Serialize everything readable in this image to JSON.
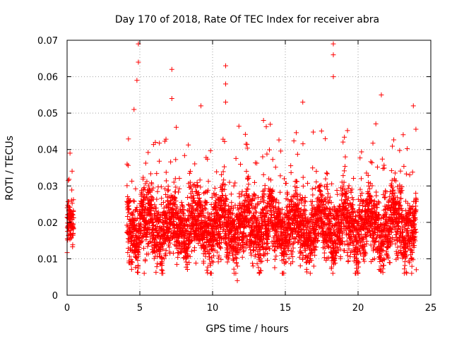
{
  "chart_data": {
    "type": "scatter",
    "title": "Day 170 of 2018, Rate Of TEC Index for receiver abra",
    "xlabel": "GPS time / hours",
    "ylabel": "ROTI / TECUs",
    "xlim": [
      0,
      25
    ],
    "ylim": [
      0,
      0.07
    ],
    "xticks": [
      0,
      5,
      10,
      15,
      20,
      25
    ],
    "xtick_labels": [
      "0",
      "5",
      "10",
      "15",
      "20",
      "25"
    ],
    "yticks": [
      0,
      0.01,
      0.02,
      0.03,
      0.04,
      0.05,
      0.06,
      0.07
    ],
    "ytick_labels": [
      "0",
      "0.01",
      "0.02",
      "0.03",
      "0.04",
      "0.05",
      "0.06",
      "0.07"
    ],
    "grid": true,
    "marker": "+",
    "color": "#ff0000",
    "data_gap_hours": [
      0.5,
      4.1
    ],
    "segments": [
      {
        "t_start": 0.0,
        "t_end": 0.45,
        "base": 0.018,
        "spread": 0.007,
        "max": 0.039
      },
      {
        "t_start": 4.1,
        "t_end": 24.0,
        "base": 0.019,
        "spread": 0.009,
        "max": 0.069
      }
    ],
    "notable_points": [
      {
        "x": 0.2,
        "y": 0.039
      },
      {
        "x": 4.9,
        "y": 0.069
      },
      {
        "x": 4.9,
        "y": 0.064
      },
      {
        "x": 4.8,
        "y": 0.059
      },
      {
        "x": 4.6,
        "y": 0.051
      },
      {
        "x": 5.3,
        "y": 0.006
      },
      {
        "x": 7.2,
        "y": 0.062
      },
      {
        "x": 7.2,
        "y": 0.054
      },
      {
        "x": 9.2,
        "y": 0.052
      },
      {
        "x": 10.9,
        "y": 0.063
      },
      {
        "x": 10.9,
        "y": 0.058
      },
      {
        "x": 10.9,
        "y": 0.053
      },
      {
        "x": 11.7,
        "y": 0.004
      },
      {
        "x": 13.5,
        "y": 0.048
      },
      {
        "x": 16.2,
        "y": 0.053
      },
      {
        "x": 18.3,
        "y": 0.069
      },
      {
        "x": 18.3,
        "y": 0.066
      },
      {
        "x": 18.3,
        "y": 0.06
      },
      {
        "x": 21.6,
        "y": 0.055
      },
      {
        "x": 23.8,
        "y": 0.052
      },
      {
        "x": 24.0,
        "y": 0.007
      }
    ]
  }
}
